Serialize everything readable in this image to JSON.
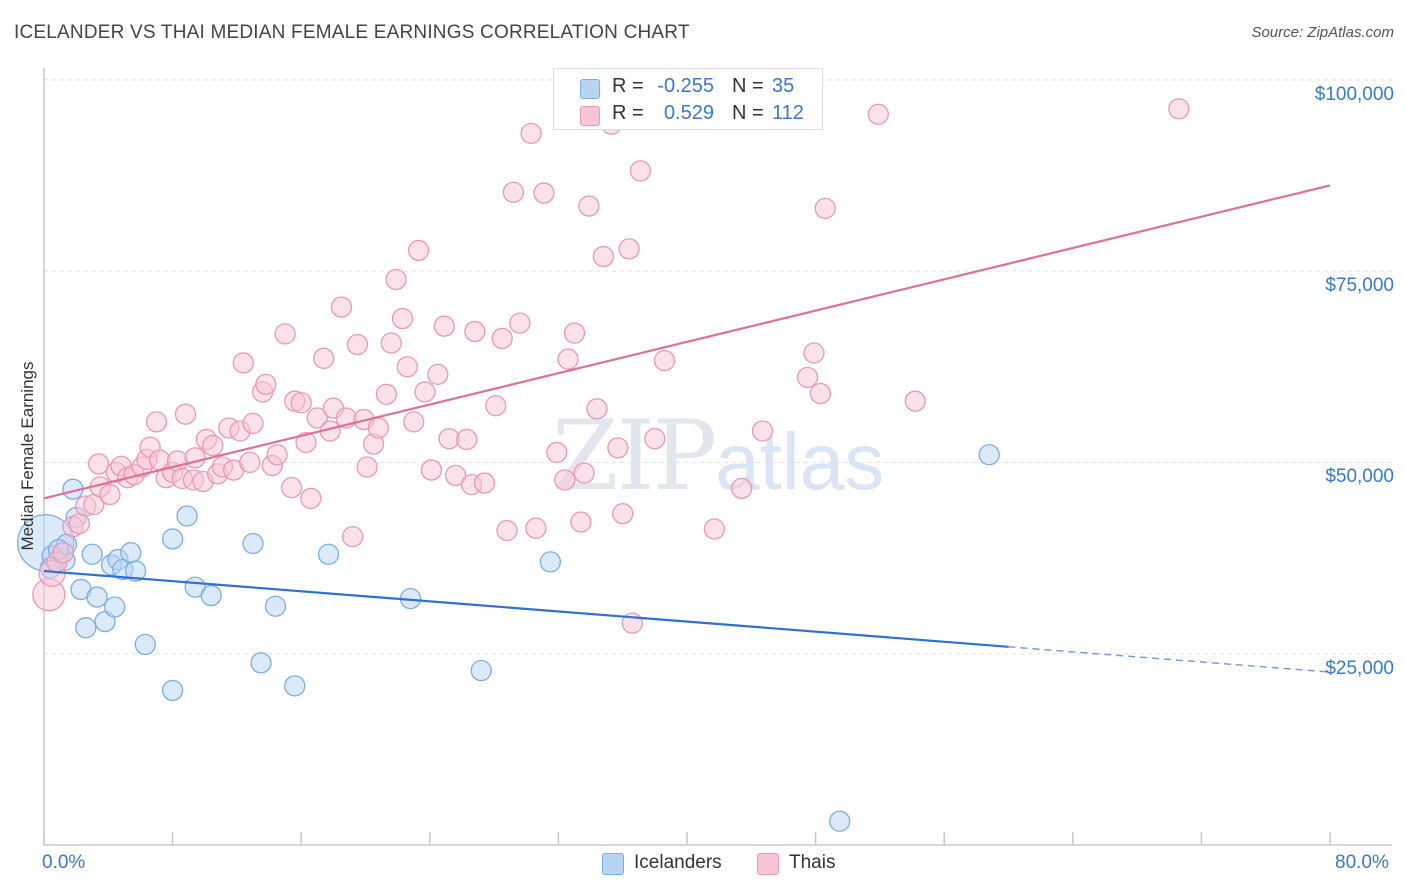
{
  "header": {
    "title": "ICELANDER VS THAI MEDIAN FEMALE EARNINGS CORRELATION CHART",
    "source": "Source: ZipAtlas.com"
  },
  "watermark": {
    "zip": "ZIP",
    "atlas": "atlas"
  },
  "legend_top": {
    "rows": [
      {
        "r_label": "R =",
        "r_value": "-0.255",
        "n_label": "N =",
        "n_value": "35"
      },
      {
        "r_label": "R =",
        "r_value": "0.529",
        "n_label": "N =",
        "n_value": "112"
      }
    ]
  },
  "colors": {
    "blue_fill": "#b8d4f3",
    "blue_stroke": "#7aaee6",
    "blue_line": "#2f6fcf",
    "pink_fill": "#f7c6d6",
    "pink_stroke": "#ec97b4",
    "pink_line": "#e07097",
    "axis_text": "#3a78c9"
  },
  "chart_data": {
    "type": "scatter",
    "title": "ICELANDER VS THAI MEDIAN FEMALE EARNINGS CORRELATION CHART",
    "xlabel": "",
    "ylabel": "Median Female Earnings",
    "xlim": [
      0,
      80
    ],
    "ylim": [
      0,
      105000
    ],
    "x_tick_labels": [
      "0.0%",
      "80.0%"
    ],
    "y_ticks": [
      25000,
      50000,
      75000,
      100000
    ],
    "y_tick_labels": [
      "$25,000",
      "$50,000",
      "$75,000",
      "$100,000"
    ],
    "grid": true,
    "legend_position": "top-center",
    "series": [
      {
        "name": "Icelanders",
        "r": -0.255,
        "n": 35,
        "trend": {
          "x0": 0,
          "y0": 35800,
          "x1": 60,
          "y1": 25900,
          "dashed_to_x": 80,
          "dashed_to_y": 22600
        },
        "points": [
          [
            0.1,
            39500,
            28
          ],
          [
            0.5,
            37800,
            10
          ],
          [
            1.3,
            37200,
            10
          ],
          [
            1.8,
            46500,
            10
          ],
          [
            1.4,
            39300,
            10
          ],
          [
            2.0,
            42800,
            10
          ],
          [
            2.3,
            33400,
            10
          ],
          [
            2.6,
            28400,
            10
          ],
          [
            3.0,
            38000,
            10
          ],
          [
            3.3,
            32400,
            10
          ],
          [
            3.8,
            29200,
            10
          ],
          [
            4.2,
            36600,
            10
          ],
          [
            4.4,
            31100,
            10
          ],
          [
            4.6,
            37300,
            10
          ],
          [
            4.9,
            36000,
            10
          ],
          [
            5.4,
            38200,
            10
          ],
          [
            5.7,
            35800,
            10
          ],
          [
            6.3,
            26200,
            10
          ],
          [
            8.0,
            40000,
            10
          ],
          [
            8.0,
            20200,
            10
          ],
          [
            8.9,
            43000,
            10
          ],
          [
            9.4,
            33700,
            10
          ],
          [
            10.4,
            32600,
            10
          ],
          [
            13.0,
            39400,
            10
          ],
          [
            13.5,
            23800,
            10
          ],
          [
            14.4,
            31200,
            10
          ],
          [
            15.6,
            20800,
            10
          ],
          [
            17.7,
            38000,
            10
          ],
          [
            22.8,
            32200,
            10
          ],
          [
            27.2,
            22800,
            10
          ],
          [
            31.5,
            37000,
            10
          ],
          [
            49.5,
            3100,
            10
          ],
          [
            58.8,
            51000,
            10
          ],
          [
            0.4,
            36200,
            10
          ],
          [
            0.9,
            38600,
            10
          ]
        ]
      },
      {
        "name": "Thais",
        "r": 0.529,
        "n": 112,
        "trend": {
          "x0": 0,
          "y0": 45300,
          "x1": 80,
          "y1": 86200
        },
        "points": [
          [
            0.3,
            32700,
            16
          ],
          [
            0.5,
            35500,
            13
          ],
          [
            0.8,
            37000,
            10
          ],
          [
            1.2,
            38200,
            10
          ],
          [
            1.8,
            41600,
            10
          ],
          [
            2.2,
            42000,
            10
          ],
          [
            2.6,
            44300,
            10
          ],
          [
            3.1,
            44500,
            10
          ],
          [
            3.5,
            46800,
            10
          ],
          [
            3.4,
            49800,
            10
          ],
          [
            4.1,
            45800,
            10
          ],
          [
            4.5,
            48700,
            10
          ],
          [
            4.8,
            49500,
            10
          ],
          [
            5.2,
            48000,
            10
          ],
          [
            5.6,
            48400,
            10
          ],
          [
            6.1,
            49400,
            10
          ],
          [
            6.4,
            50400,
            10
          ],
          [
            6.6,
            52000,
            10
          ],
          [
            7.0,
            55300,
            10
          ],
          [
            7.2,
            50300,
            10
          ],
          [
            7.6,
            48000,
            10
          ],
          [
            8.0,
            48700,
            10
          ],
          [
            8.3,
            50200,
            10
          ],
          [
            8.8,
            56300,
            10
          ],
          [
            8.6,
            47900,
            10
          ],
          [
            9.3,
            47700,
            10
          ],
          [
            9.4,
            50600,
            10
          ],
          [
            9.9,
            47500,
            10
          ],
          [
            10.1,
            53000,
            10
          ],
          [
            10.5,
            52200,
            10
          ],
          [
            10.8,
            48500,
            10
          ],
          [
            11.1,
            49400,
            10
          ],
          [
            11.5,
            54500,
            10
          ],
          [
            11.8,
            49000,
            10
          ],
          [
            12.2,
            54100,
            10
          ],
          [
            12.4,
            63000,
            10
          ],
          [
            12.8,
            50000,
            10
          ],
          [
            13.0,
            55100,
            10
          ],
          [
            13.6,
            59200,
            10
          ],
          [
            13.8,
            60200,
            10
          ],
          [
            14.2,
            49600,
            10
          ],
          [
            14.5,
            51000,
            10
          ],
          [
            15.0,
            66800,
            10
          ],
          [
            15.4,
            46700,
            10
          ],
          [
            15.6,
            58000,
            10
          ],
          [
            16.0,
            57800,
            10
          ],
          [
            16.3,
            52600,
            10
          ],
          [
            16.6,
            45300,
            10
          ],
          [
            17.0,
            55800,
            10
          ],
          [
            17.4,
            63600,
            10
          ],
          [
            17.8,
            54100,
            10
          ],
          [
            18.0,
            57100,
            10
          ],
          [
            18.5,
            70300,
            10
          ],
          [
            18.8,
            55800,
            10
          ],
          [
            19.2,
            40300,
            10
          ],
          [
            19.5,
            65400,
            10
          ],
          [
            19.9,
            55600,
            10
          ],
          [
            20.1,
            49400,
            10
          ],
          [
            20.5,
            52400,
            10
          ],
          [
            20.8,
            54500,
            10
          ],
          [
            21.3,
            58900,
            10
          ],
          [
            21.6,
            65600,
            10
          ],
          [
            21.9,
            73900,
            10
          ],
          [
            22.3,
            68800,
            10
          ],
          [
            22.6,
            62500,
            10
          ],
          [
            23.0,
            55300,
            10
          ],
          [
            23.3,
            77700,
            10
          ],
          [
            23.7,
            59200,
            10
          ],
          [
            24.1,
            49000,
            10
          ],
          [
            24.5,
            61500,
            10
          ],
          [
            24.9,
            67800,
            10
          ],
          [
            25.2,
            53100,
            10
          ],
          [
            25.6,
            48300,
            10
          ],
          [
            26.3,
            53000,
            10
          ],
          [
            26.6,
            47100,
            10
          ],
          [
            26.8,
            67100,
            10
          ],
          [
            27.4,
            47300,
            10
          ],
          [
            28.1,
            57400,
            10
          ],
          [
            28.5,
            66200,
            10
          ],
          [
            28.8,
            41100,
            10
          ],
          [
            29.2,
            85300,
            10
          ],
          [
            29.6,
            68200,
            10
          ],
          [
            30.3,
            93000,
            10
          ],
          [
            30.6,
            41400,
            10
          ],
          [
            31.1,
            85200,
            10
          ],
          [
            31.9,
            51300,
            10
          ],
          [
            32.4,
            47700,
            10
          ],
          [
            32.6,
            63500,
            10
          ],
          [
            33.0,
            66900,
            10
          ],
          [
            33.4,
            42200,
            10
          ],
          [
            33.6,
            48600,
            10
          ],
          [
            33.9,
            83500,
            10
          ],
          [
            34.4,
            57000,
            10
          ],
          [
            34.8,
            76900,
            10
          ],
          [
            35.3,
            94200,
            10
          ],
          [
            35.7,
            51900,
            10
          ],
          [
            36.0,
            43300,
            10
          ],
          [
            36.4,
            77900,
            10
          ],
          [
            36.6,
            29000,
            10
          ],
          [
            37.1,
            88100,
            10
          ],
          [
            38.0,
            53100,
            10
          ],
          [
            38.6,
            63300,
            10
          ],
          [
            41.7,
            41300,
            10
          ],
          [
            43.4,
            46600,
            10
          ],
          [
            44.7,
            54100,
            10
          ],
          [
            47.5,
            61100,
            10
          ],
          [
            47.9,
            64300,
            10
          ],
          [
            48.3,
            59000,
            10
          ],
          [
            48.6,
            83200,
            10
          ],
          [
            51.9,
            95500,
            10
          ],
          [
            54.2,
            58000,
            10
          ],
          [
            70.6,
            96200,
            10
          ]
        ]
      }
    ]
  },
  "legend_bottom": {
    "items": [
      {
        "label": "Icelanders"
      },
      {
        "label": "Thais"
      }
    ]
  }
}
